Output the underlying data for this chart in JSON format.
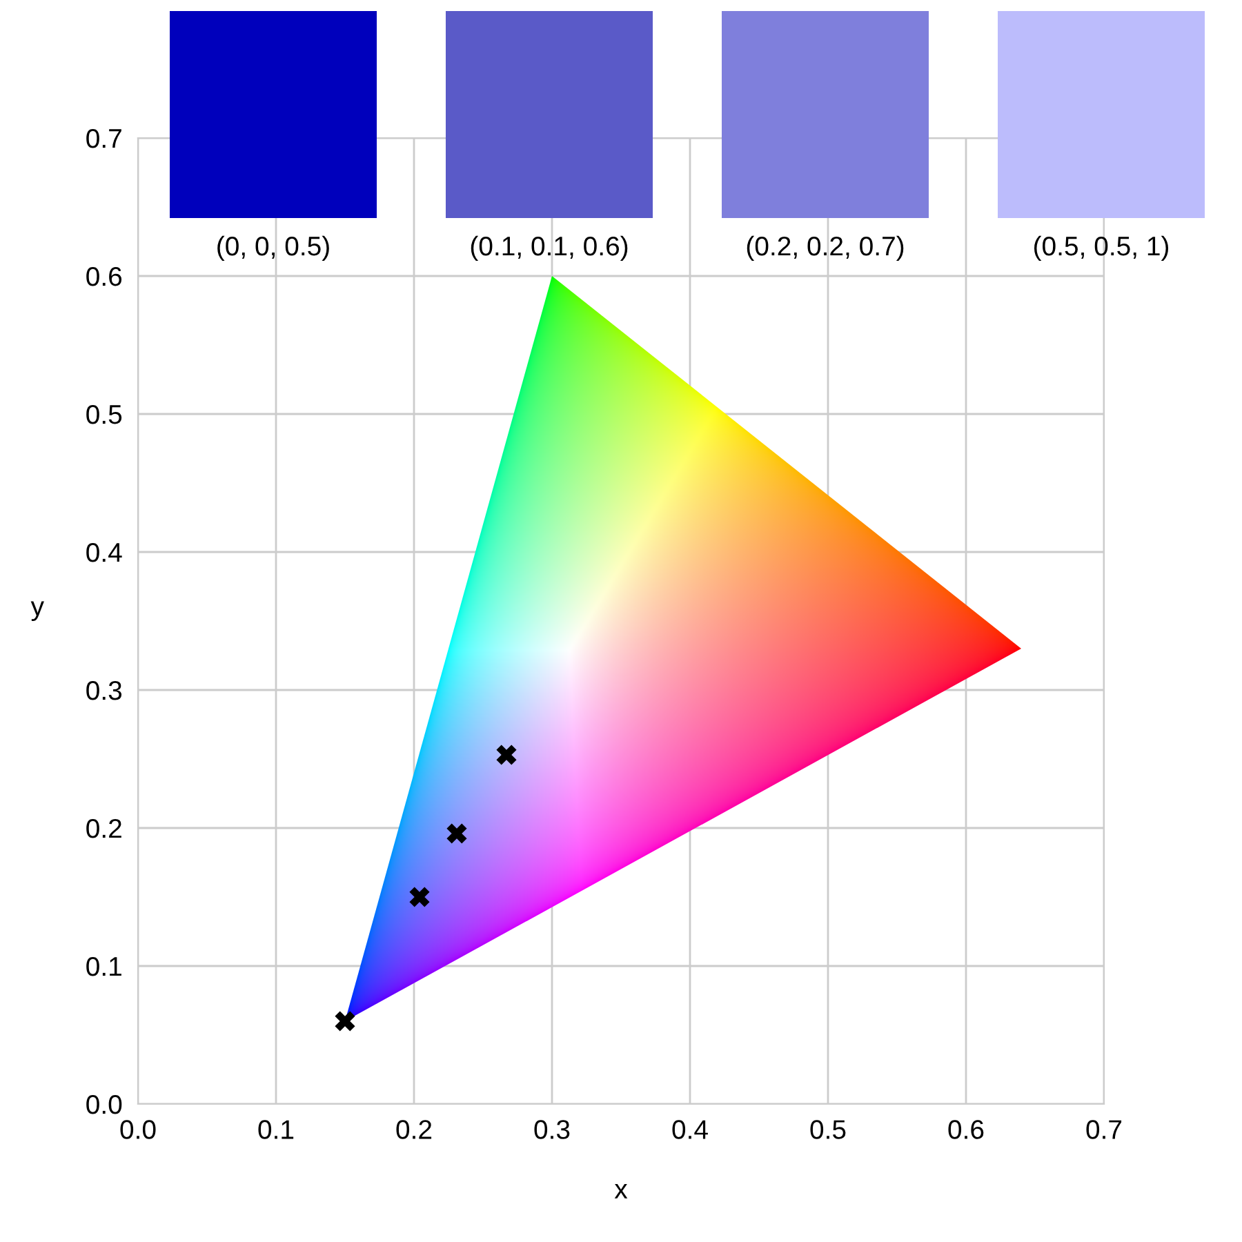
{
  "chart_data": [
    {
      "type": "scatter",
      "xlabel": "x",
      "ylabel": "y",
      "xlim": [
        0,
        0.7
      ],
      "ylim": [
        0,
        0.7
      ],
      "xticks": [
        {
          "value": 0,
          "label": "0.0"
        },
        0.1,
        0.2,
        0.3,
        0.4,
        0.5,
        0.6,
        0.7
      ],
      "yticks": [
        {
          "value": 0,
          "label": "0.0"
        },
        0.1,
        0.2,
        0.3,
        0.4,
        0.5,
        0.6,
        0.7
      ],
      "grid": true,
      "marker": "cross",
      "series": [
        {
          "type": "scatter",
          "color": "#000000",
          "x": [
            0.15,
            0.204,
            0.231,
            0.267
          ],
          "values": [
            0.06,
            0.15,
            0.196,
            0.253
          ]
        }
      ]
    },
    {
      "type": "other",
      "categories": [
        "(0, 0, 0.5)",
        "(0.1, 0.1, 0.6)",
        "(0.2, 0.2, 0.7)",
        "(0.5, 0.5, 1)"
      ],
      "colors": [
        "#0000bc",
        "#5a5ac8",
        "#7f7fdc",
        "#bcbcfc"
      ]
    }
  ]
}
